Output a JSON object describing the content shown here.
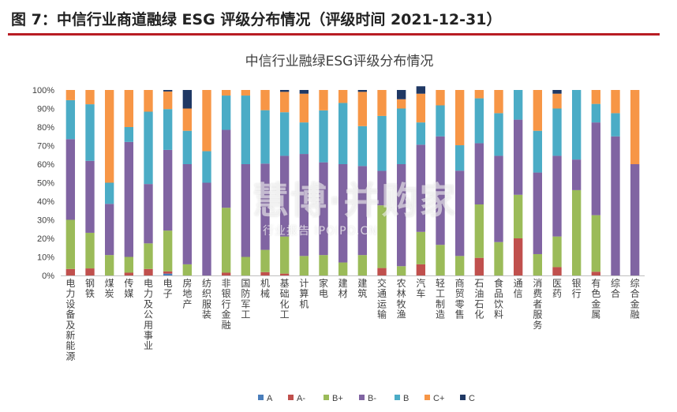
{
  "figure_title": "图 7：中信行业商道融绿 ESG 评级分布情况（评级时间 2021-12-31）",
  "watermark": {
    "main": "慧博·并购家",
    "sub": "行业报告 IPOIPO.CN"
  },
  "chart_data": {
    "type": "bar",
    "stacked": true,
    "title": "中信行业融绿ESG评级分布情况",
    "ylim": [
      0,
      100
    ],
    "yticks": [
      "0%",
      "10%",
      "20%",
      "30%",
      "40%",
      "50%",
      "60%",
      "70%",
      "80%",
      "90%",
      "100%"
    ],
    "grid": false,
    "legend_position": "bottom",
    "categories": [
      "电力设备及新能源",
      "钢铁",
      "煤炭",
      "传媒",
      "电力及公用事业",
      "电子",
      "房地产",
      "纺织服装",
      "非银行金融",
      "国防军工",
      "机械",
      "基础化工",
      "计算机",
      "家电",
      "建材",
      "建筑",
      "交通运输",
      "农林牧渔",
      "汽车",
      "轻工制造",
      "商贸零售",
      "石油石化",
      "食品饮料",
      "通信",
      "消费者服务",
      "医药",
      "银行",
      "有色金属",
      "综合",
      "综合金融"
    ],
    "series": [
      {
        "name": "A",
        "color": "#4a7ebb",
        "values": [
          0,
          0,
          0,
          0,
          0,
          1,
          0,
          0,
          0,
          0,
          0,
          0,
          0,
          0,
          0,
          0,
          0,
          0,
          0,
          0,
          0,
          0,
          0,
          0,
          0,
          0,
          0,
          0,
          0,
          0
        ]
      },
      {
        "name": "A-",
        "color": "#c0504d",
        "values": [
          3.5,
          3.8,
          0,
          1.5,
          3.5,
          1.2,
          0,
          0,
          1.5,
          0,
          1.8,
          1,
          0,
          0,
          0,
          0,
          4,
          0,
          6,
          0,
          0,
          9.5,
          0,
          20,
          0,
          4.5,
          0,
          2,
          0,
          0
        ]
      },
      {
        "name": "B+",
        "color": "#9bbb59",
        "values": [
          26.5,
          19.2,
          11,
          8.5,
          13.8,
          22,
          6,
          0,
          35,
          10,
          12,
          20,
          10.5,
          11,
          7,
          11,
          33.8,
          5,
          17.5,
          16.5,
          10.5,
          28.8,
          18,
          23.5,
          11.5,
          16.5,
          46,
          30.5,
          0,
          0
        ]
      },
      {
        "name": "B-",
        "color": "#8064a2",
        "values": [
          43.5,
          38.8,
          27.6,
          62,
          32,
          43.5,
          54,
          50,
          42,
          50,
          46.5,
          43.5,
          55,
          50,
          53,
          48,
          18.6,
          55,
          47,
          58.5,
          46,
          33,
          46.5,
          40.5,
          44,
          43.5,
          16.5,
          50,
          75,
          60
        ]
      },
      {
        "name": "B",
        "color": "#4bacc6",
        "values": [
          21,
          30.5,
          11.4,
          8,
          39,
          22,
          18,
          17,
          18.5,
          37,
          28.8,
          23.5,
          17,
          28,
          33,
          21.5,
          29.6,
          30,
          12,
          16.7,
          13.7,
          24.2,
          23,
          16,
          22.5,
          25.5,
          37.5,
          10,
          12.5,
          0
        ]
      },
      {
        "name": "C+",
        "color": "#f79646",
        "values": [
          5.5,
          7.7,
          50,
          20,
          11.7,
          9.5,
          12,
          33,
          3,
          3,
          10.9,
          11,
          15.5,
          11,
          7,
          18.5,
          14,
          5,
          15.5,
          8.3,
          29.8,
          4.5,
          12.5,
          0,
          22,
          8,
          0,
          7.5,
          12.5,
          40
        ]
      },
      {
        "name": "C",
        "color": "#1f3864",
        "values": [
          0,
          0,
          0,
          0,
          0,
          0.8,
          10,
          0,
          0,
          0,
          0,
          1,
          2,
          0,
          0,
          1,
          0,
          5,
          4,
          0,
          0,
          0,
          0,
          0,
          0,
          2,
          0,
          0,
          0,
          0
        ]
      }
    ]
  }
}
